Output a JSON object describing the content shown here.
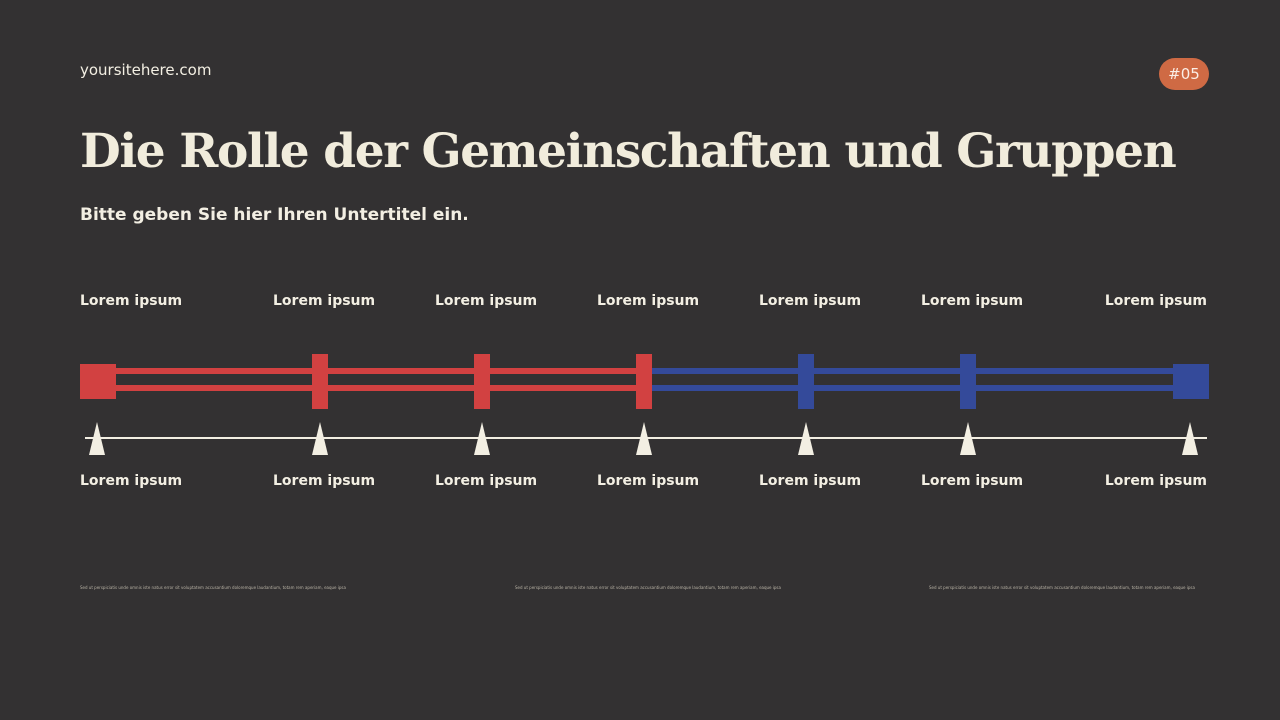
{
  "header": {
    "site": "yoursitehere.com",
    "badge": "#05",
    "title": "Die Rolle der Gemeinschaften und Gruppen",
    "subtitle": "Bitte geben Sie hier Ihren Untertitel ein."
  },
  "timeline": {
    "top_labels": [
      "Lorem ipsum",
      "Lorem ipsum",
      "Lorem ipsum",
      "Lorem ipsum",
      "Lorem ipsum",
      "Lorem ipsum",
      "Lorem ipsum"
    ],
    "bottom_labels": [
      "Lorem ipsum",
      "Lorem ipsum",
      "Lorem ipsum",
      "Lorem ipsum",
      "Lorem ipsum",
      "Lorem ipsum",
      "Lorem ipsum"
    ]
  },
  "notes": [
    "Sed ut perspiciatis unde omnis iste natus error sit voluptatem accusantium doloremque laudantium, totam rem aperiam, eaque ipsa",
    "Sed ut perspiciatis unde omnis iste natus error sit voluptatem accusantium doloremque laudantium, totam rem aperiam, eaque ipsa",
    "Sed ut perspiciatis unde omnis iste natus error sit voluptatem accusantium doloremque laudantium, totam rem aperiam, eaque ipsa"
  ],
  "colors": {
    "background": "#333132",
    "red": "#d24141",
    "blue": "#344a9a",
    "cream": "#f3efe3",
    "badge": "#cf6a44"
  }
}
